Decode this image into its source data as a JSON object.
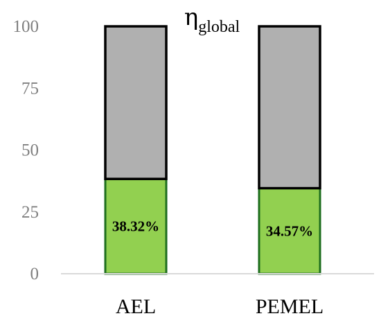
{
  "chart_data": {
    "type": "bar",
    "stacked": true,
    "title": "η",
    "title_subscript": "global",
    "categories": [
      "AEL",
      "PEMEL"
    ],
    "series": [
      {
        "values": [
          38.32,
          34.57
        ],
        "color": "#92d050",
        "edge_color": "#1e6e1e"
      },
      {
        "values": [
          61.68,
          65.43
        ],
        "color": "#b0b0b0",
        "edge_color": "#000000"
      }
    ],
    "data_labels": [
      "38.32%",
      "34.57%"
    ],
    "ylim": [
      0,
      100
    ],
    "yticks": [
      0,
      25,
      50,
      75,
      100
    ],
    "grid": false,
    "axis_color": "#d9d9d9",
    "tick_label_color": "#7f7f7f"
  }
}
